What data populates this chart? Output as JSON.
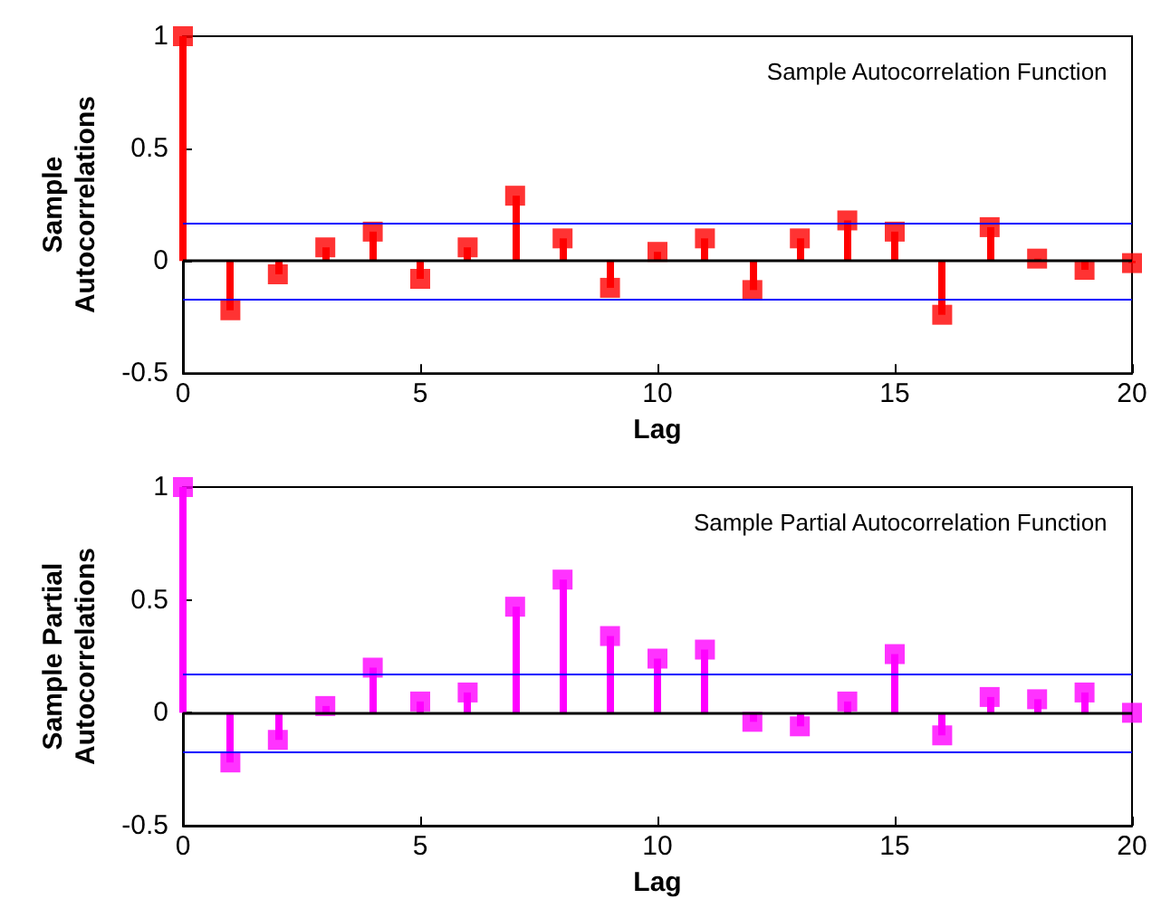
{
  "chart_data": [
    {
      "type": "lollipop",
      "title": "Sample Autocorrelation Function",
      "xlabel": "Lag",
      "ylabel": "Sample\nAutocorrelations",
      "x": [
        0,
        1,
        2,
        3,
        4,
        5,
        6,
        7,
        8,
        9,
        10,
        11,
        12,
        13,
        14,
        15,
        16,
        17,
        18,
        19,
        20
      ],
      "values": [
        1,
        -0.22,
        -0.06,
        0.06,
        0.13,
        -0.08,
        0.06,
        0.29,
        0.1,
        -0.12,
        0.04,
        0.1,
        -0.13,
        0.1,
        0.18,
        0.13,
        -0.24,
        0.15,
        0.01,
        -0.04,
        -0.01
      ],
      "color": "#ff0000",
      "marker": "square",
      "xlim": [
        0,
        20
      ],
      "xticks": [
        0,
        5,
        10,
        15,
        20
      ],
      "ylim": [
        -0.5,
        1
      ],
      "yticks": [
        -0.5,
        0,
        0.5,
        1
      ],
      "ref_lines": [
        {
          "axis": "y",
          "value": 0,
          "color": "#000000"
        },
        {
          "axis": "y",
          "value": 0.17,
          "color": "#0000ff"
        },
        {
          "axis": "y",
          "value": -0.17,
          "color": "#0000ff"
        }
      ],
      "grid": false
    },
    {
      "type": "lollipop",
      "title": "Sample Partial Autocorrelation Function",
      "xlabel": "Lag",
      "ylabel": "Sample Partial\nAutocorrelations",
      "x": [
        0,
        1,
        2,
        3,
        4,
        5,
        6,
        7,
        8,
        9,
        10,
        11,
        12,
        13,
        14,
        15,
        16,
        17,
        18,
        19,
        20
      ],
      "values": [
        1,
        -0.22,
        -0.12,
        0.03,
        0.2,
        0.05,
        0.09,
        0.47,
        0.59,
        0.34,
        0.24,
        0.28,
        -0.04,
        -0.06,
        0.05,
        0.26,
        -0.1,
        0.07,
        0.06,
        0.09,
        0
      ],
      "color": "#ff00ff",
      "marker": "square",
      "xlim": [
        0,
        20
      ],
      "xticks": [
        0,
        5,
        10,
        15,
        20
      ],
      "ylim": [
        -0.5,
        1
      ],
      "yticks": [
        -0.5,
        0,
        0.5,
        1
      ],
      "ref_lines": [
        {
          "axis": "y",
          "value": 0,
          "color": "#000000"
        },
        {
          "axis": "y",
          "value": 0.17,
          "color": "#0000ff"
        },
        {
          "axis": "y",
          "value": -0.17,
          "color": "#0000ff"
        }
      ],
      "grid": false
    }
  ]
}
